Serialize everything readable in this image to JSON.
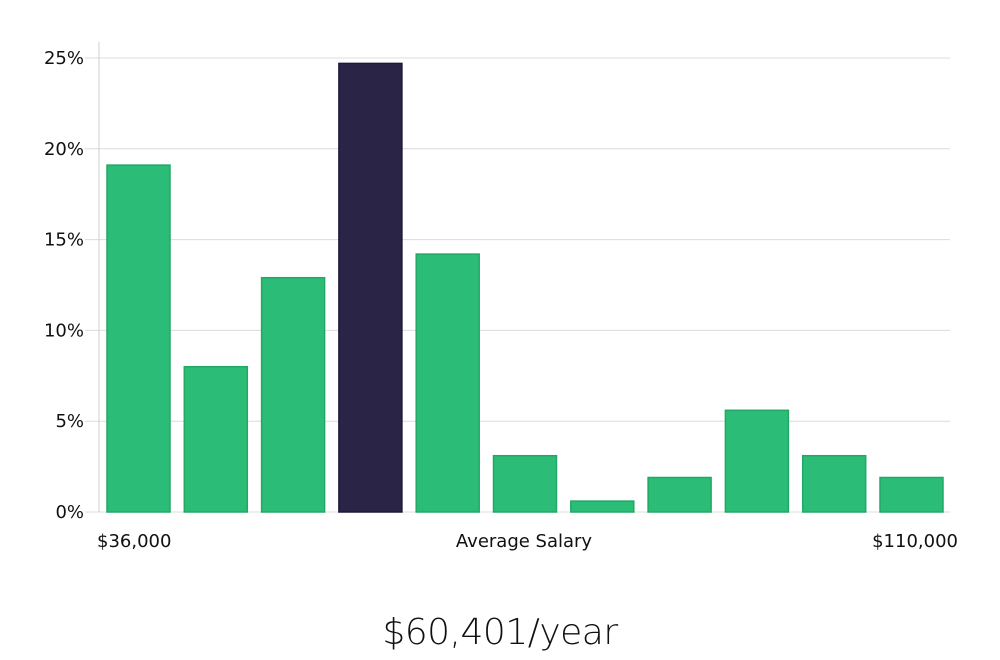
{
  "chart_data": {
    "type": "bar",
    "title": "",
    "xlabel": "Average Salary",
    "ylabel": "",
    "x_range_labels": {
      "min": "$36,000",
      "max": "$110,000"
    },
    "y_ticks": [
      "0%",
      "5%",
      "10%",
      "15%",
      "20%",
      "25%"
    ],
    "y_tick_values": [
      0,
      5,
      10,
      15,
      20,
      25
    ],
    "ylim": [
      0,
      26
    ],
    "grid": true,
    "values": [
      19.1,
      8.0,
      12.9,
      24.7,
      14.2,
      3.1,
      0.6,
      1.9,
      5.6,
      3.1,
      1.9
    ],
    "highlight_index": 3,
    "colors": {
      "bar": "#2bbd77",
      "bar_edge": "#22a866",
      "highlight": "#2a2547",
      "highlight_edge": "#1d1938",
      "grid": "#dcdcdc"
    }
  },
  "salary_summary": "$60,401/year"
}
